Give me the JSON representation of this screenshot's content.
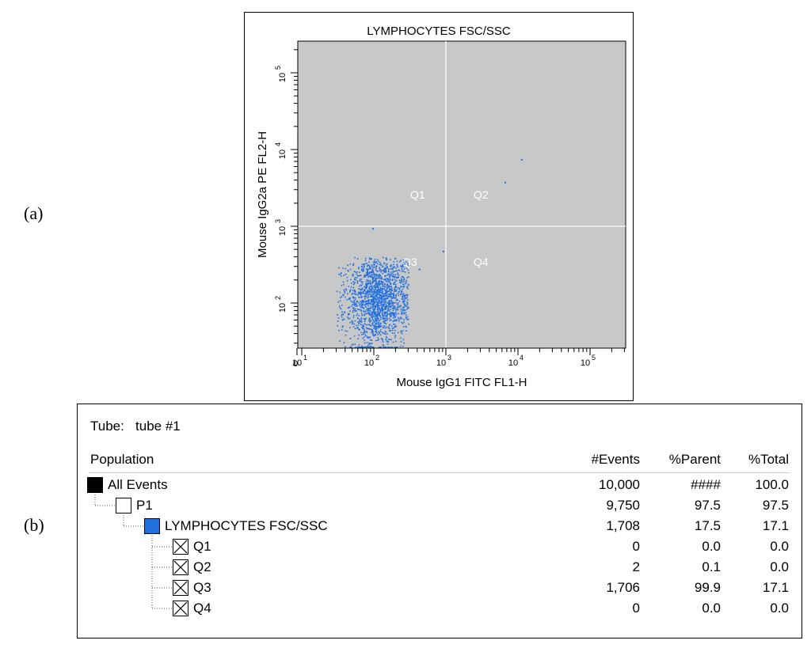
{
  "panel_labels": {
    "a": "(a)",
    "b": "(b)"
  },
  "chart_data": {
    "type": "scatter",
    "title": "LYMPHOCYTES FSC/SSC",
    "xlabel": "Mouse IgG1 FITC FL1-H",
    "ylabel": "Mouse IgG2a PE FL2-H",
    "xscale": "log",
    "yscale": "log",
    "xlim": [
      0,
      200000
    ],
    "ylim": [
      0,
      200000
    ],
    "x_ticks": [
      "0",
      "10^1",
      "10^2",
      "10^3",
      "10^4",
      "10^5"
    ],
    "y_ticks": [
      "10^2",
      "10^3",
      "10^4",
      "10^5"
    ],
    "quadrant_gate": {
      "x": 1000,
      "y": 1000
    },
    "quadrant_labels": [
      "Q1",
      "Q2",
      "Q3",
      "Q4"
    ],
    "point_color": "#1e6fe0",
    "background_color": "#c8c8c8",
    "cluster": {
      "x_center": 110,
      "y_center": 110,
      "x_range": [
        30,
        300
      ],
      "y_range": [
        25,
        400
      ]
    },
    "outlier_points": [
      {
        "x": 11000,
        "y": 7500
      },
      {
        "x": 6500,
        "y": 3800
      },
      {
        "x": 900,
        "y": 480
      },
      {
        "x": 95,
        "y": 950
      },
      {
        "x": 420,
        "y": 280
      }
    ]
  },
  "stats": {
    "tube_label": "Tube:",
    "tube_name": "tube #1",
    "headers": {
      "population": "Population",
      "events": "#Events",
      "parent": "%Parent",
      "total": "%Total"
    },
    "rows": [
      {
        "name": "All Events",
        "events": "10,000",
        "parent": "####",
        "total": "100.0",
        "box": "black",
        "level": 0
      },
      {
        "name": "P1",
        "events": "9,750",
        "parent": "97.5",
        "total": "97.5",
        "box": "white",
        "level": 1
      },
      {
        "name": "LYMPHOCYTES FSC/SSC",
        "events": "1,708",
        "parent": "17.5",
        "total": "17.1",
        "box": "blue",
        "level": 2
      },
      {
        "name": "Q1",
        "events": "0",
        "parent": "0.0",
        "total": "0.0",
        "box": "x",
        "level": 3
      },
      {
        "name": "Q2",
        "events": "2",
        "parent": "0.1",
        "total": "0.0",
        "box": "x",
        "level": 3
      },
      {
        "name": "Q3",
        "events": "1,706",
        "parent": "99.9",
        "total": "17.1",
        "box": "x",
        "level": 3
      },
      {
        "name": "Q4",
        "events": "0",
        "parent": "0.0",
        "total": "0.0",
        "box": "x",
        "level": 3
      }
    ]
  }
}
